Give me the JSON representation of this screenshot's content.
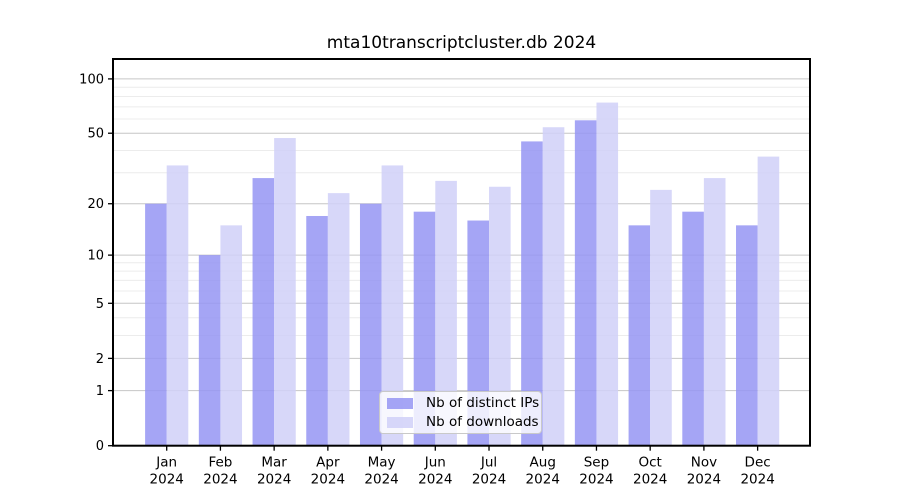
{
  "chart_data": {
    "type": "bar",
    "title": "mta10transcriptcluster.db 2024",
    "categories": [
      "Jan 2024",
      "Feb 2024",
      "Mar 2024",
      "Apr 2024",
      "May 2024",
      "Jun 2024",
      "Jul 2024",
      "Aug 2024",
      "Sep 2024",
      "Oct 2024",
      "Nov 2024",
      "Dec 2024"
    ],
    "series": [
      {
        "name": "Nb of distinct IPs",
        "color": "#9595f3",
        "opacity": 0.85,
        "values": [
          20,
          10,
          28,
          17,
          20,
          18,
          16,
          45,
          59,
          15,
          18,
          15
        ]
      },
      {
        "name": "Nb of downloads",
        "color": "#d0d0f8",
        "opacity": 0.85,
        "values": [
          33,
          15,
          47,
          23,
          33,
          27,
          25,
          54,
          74,
          24,
          28,
          37
        ]
      }
    ],
    "xlabel": "",
    "ylabel": "",
    "yscale": "log1p",
    "ylim": [
      0,
      129
    ],
    "yticks": [
      0,
      1,
      2,
      5,
      10,
      20,
      50,
      100
    ],
    "minor_gridlines": [
      3,
      4,
      6,
      7,
      8,
      9,
      30,
      40,
      60,
      70,
      80,
      90
    ],
    "grid": "on",
    "legend_position": "lower center"
  },
  "colors": {
    "bar_distinct_ips": "#aaaaf6",
    "bar_downloads": "#d9d9f9",
    "grid_major": "#c6c6c6",
    "grid_minor": "#ececec",
    "spine": "#000000",
    "background": "#ffffff"
  }
}
